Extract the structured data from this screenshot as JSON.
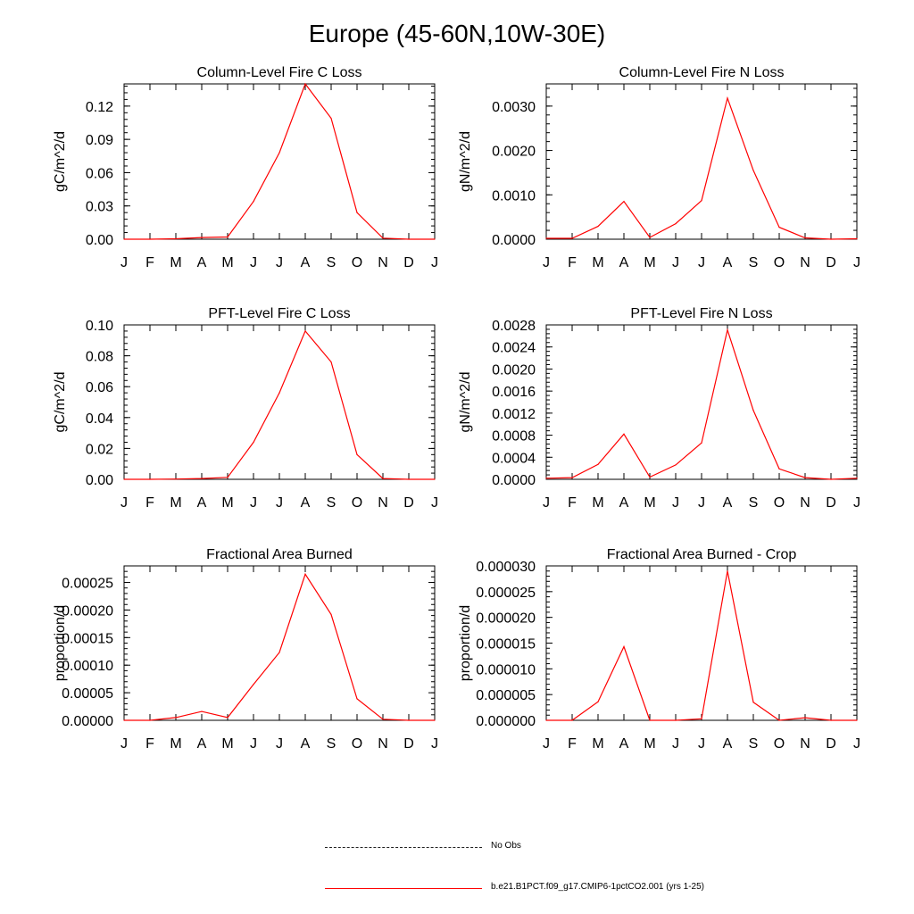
{
  "title": "Europe (45-60N,10W-30E)",
  "months": [
    "J",
    "F",
    "M",
    "A",
    "M",
    "J",
    "J",
    "A",
    "S",
    "O",
    "N",
    "D",
    "J"
  ],
  "line_color": "#ff0000",
  "chart_data": [
    {
      "type": "line",
      "title": "Column-Level Fire C Loss",
      "ylabel": "gC/m^2/d",
      "ylim": [
        0,
        0.14
      ],
      "yticks": [
        "0.00",
        "0.03",
        "0.06",
        "0.09",
        "0.12"
      ],
      "ytick_values": [
        0,
        0.03,
        0.06,
        0.09,
        0.12
      ],
      "values": [
        0.0,
        0.0,
        0.0004,
        0.0015,
        0.002,
        0.034,
        0.078,
        0.14,
        0.109,
        0.024,
        0.001,
        0.0,
        0.0
      ]
    },
    {
      "type": "line",
      "title": "Column-Level Fire N Loss",
      "ylabel": "gN/m^2/d",
      "ylim": [
        0,
        0.0035
      ],
      "yticks": [
        "0.0000",
        "0.0010",
        "0.0020",
        "0.0030"
      ],
      "ytick_values": [
        0,
        0.001,
        0.002,
        0.003
      ],
      "values": [
        2e-05,
        2e-05,
        0.00029,
        0.00085,
        4e-05,
        0.00035,
        0.00087,
        0.00318,
        0.00155,
        0.00027,
        3e-05,
        0.0,
        1e-05
      ]
    },
    {
      "type": "line",
      "title": "PFT-Level Fire C Loss",
      "ylabel": "gC/m^2/d",
      "ylim": [
        0,
        0.1
      ],
      "yticks": [
        "0.00",
        "0.02",
        "0.04",
        "0.06",
        "0.08",
        "0.10"
      ],
      "ytick_values": [
        0,
        0.02,
        0.04,
        0.06,
        0.08,
        0.1
      ],
      "values": [
        0.0,
        0.0,
        0.0002,
        0.0005,
        0.0013,
        0.024,
        0.056,
        0.096,
        0.076,
        0.016,
        0.0005,
        0.0,
        0.0
      ]
    },
    {
      "type": "line",
      "title": "PFT-Level Fire N Loss",
      "ylabel": "gN/m^2/d",
      "ylim": [
        0,
        0.0028
      ],
      "yticks": [
        "0.0000",
        "0.0004",
        "0.0008",
        "0.0012",
        "0.0016",
        "0.0020",
        "0.0024",
        "0.0028"
      ],
      "ytick_values": [
        0,
        0.0004,
        0.0008,
        0.0012,
        0.0016,
        0.002,
        0.0024,
        0.0028
      ],
      "values": [
        2e-05,
        3e-05,
        0.00027,
        0.00082,
        4e-05,
        0.00026,
        0.00066,
        0.00271,
        0.00125,
        0.00019,
        3e-05,
        0.0,
        2e-05
      ]
    },
    {
      "type": "line",
      "title": "Fractional Area Burned",
      "ylabel": "proportion/d",
      "ylim": [
        0,
        0.00028
      ],
      "yticks": [
        "0.00000",
        "0.00005",
        "0.00010",
        "0.00015",
        "0.00020",
        "0.00025"
      ],
      "ytick_values": [
        0,
        5e-05,
        0.0001,
        0.00015,
        0.0002,
        0.00025
      ],
      "values": [
        0.0,
        0.0,
        5e-06,
        1.6e-05,
        5e-06,
        6.5e-05,
        0.000123,
        0.000265,
        0.000192,
        3.9e-05,
        2e-06,
        0.0,
        0.0
      ]
    },
    {
      "type": "line",
      "title": "Fractional Area Burned - Crop",
      "ylabel": "proportion/d",
      "ylim": [
        0,
        3e-05
      ],
      "yticks": [
        "0.000000",
        "0.000005",
        "0.000010",
        "0.000015",
        "0.000020",
        "0.000025",
        "0.000030"
      ],
      "ytick_values": [
        0,
        5e-06,
        1e-05,
        1.5e-05,
        2e-05,
        2.5e-05,
        3e-05
      ],
      "values": [
        0.0,
        0.0,
        3.6e-06,
        1.43e-05,
        0.0,
        0.0,
        3e-07,
        2.9e-05,
        3.5e-06,
        0.0,
        5e-07,
        0.0,
        0.0
      ]
    }
  ],
  "legend": [
    {
      "label": "No Obs",
      "style": "dashed"
    },
    {
      "label": "b.e21.B1PCT.f09_g17.CMIP6-1pctCO2.001 (yrs 1-25)",
      "style": "solid"
    }
  ]
}
